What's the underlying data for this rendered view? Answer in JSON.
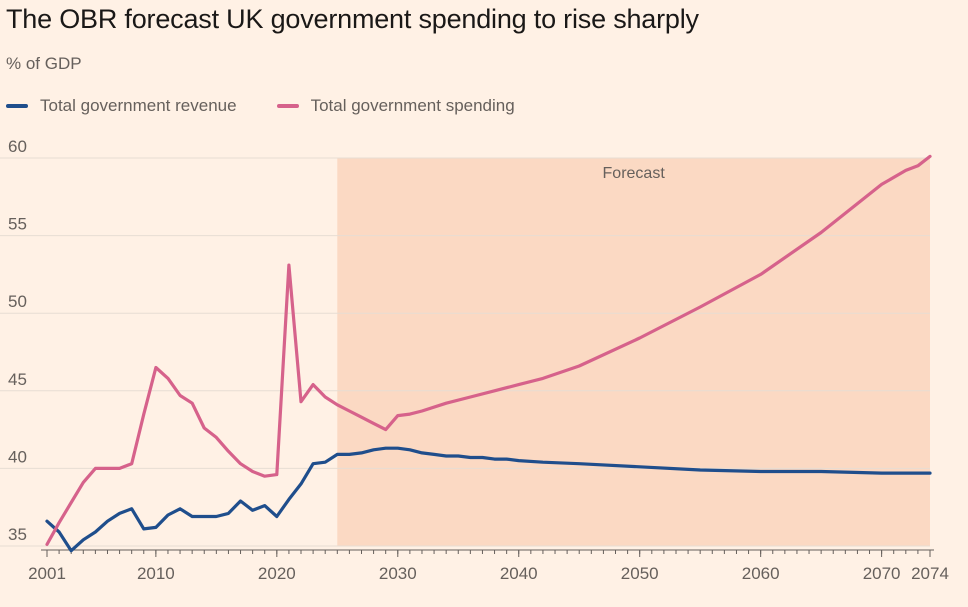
{
  "title": "The OBR forecast UK government spending to rise sharply",
  "subtitle": "% of GDP",
  "legend": {
    "revenue": "Total government revenue",
    "spending": "Total government spending"
  },
  "colors": {
    "background": "#fff1e5",
    "forecast_band": "#fbd9c3",
    "revenue": "#1f4e8c",
    "spending": "#d6628b",
    "grid": "#e7ddd3",
    "axis": "#66605c"
  },
  "chart_data": {
    "type": "line",
    "title": "The OBR forecast UK government spending to rise sharply",
    "ylabel": "% of GDP",
    "xlim": [
      2001,
      2074
    ],
    "ylim": [
      35,
      60
    ],
    "yticks": [
      35,
      40,
      45,
      50,
      55,
      60
    ],
    "xticks": [
      2001,
      2010,
      2020,
      2030,
      2040,
      2050,
      2060,
      2070,
      2074
    ],
    "grid": true,
    "legend_position": "top-left",
    "annotation": {
      "label": "Forecast",
      "x_start": 2025,
      "x_end": 2074
    },
    "series": [
      {
        "name": "Total government revenue",
        "x": [
          2001,
          2002,
          2003,
          2004,
          2005,
          2006,
          2007,
          2008,
          2009,
          2010,
          2011,
          2012,
          2013,
          2014,
          2015,
          2016,
          2017,
          2018,
          2019,
          2020,
          2021,
          2022,
          2023,
          2024,
          2025,
          2026,
          2027,
          2028,
          2029,
          2030,
          2031,
          2032,
          2033,
          2034,
          2035,
          2036,
          2037,
          2038,
          2039,
          2040,
          2042,
          2045,
          2050,
          2055,
          2060,
          2065,
          2070,
          2074
        ],
        "values": [
          36.6,
          35.9,
          34.7,
          35.4,
          35.9,
          36.6,
          37.1,
          37.4,
          36.1,
          36.2,
          37.0,
          37.4,
          36.9,
          36.9,
          36.9,
          37.1,
          37.9,
          37.3,
          37.6,
          36.9,
          38.0,
          39.0,
          40.3,
          40.4,
          40.9,
          40.9,
          41.0,
          41.2,
          41.3,
          41.3,
          41.2,
          41.0,
          40.9,
          40.8,
          40.8,
          40.7,
          40.7,
          40.6,
          40.6,
          40.5,
          40.4,
          40.3,
          40.1,
          39.9,
          39.8,
          39.8,
          39.7,
          39.7
        ]
      },
      {
        "name": "Total government spending",
        "x": [
          2001,
          2002,
          2003,
          2004,
          2005,
          2006,
          2007,
          2008,
          2009,
          2010,
          2011,
          2012,
          2013,
          2014,
          2015,
          2016,
          2017,
          2018,
          2019,
          2020,
          2021,
          2022,
          2023,
          2024,
          2025,
          2026,
          2027,
          2028,
          2029,
          2030,
          2031,
          2032,
          2034,
          2036,
          2038,
          2040,
          2042,
          2045,
          2050,
          2055,
          2060,
          2065,
          2070,
          2072,
          2073,
          2074
        ],
        "values": [
          35.1,
          36.5,
          37.8,
          39.1,
          40.0,
          40.0,
          40.0,
          40.3,
          43.5,
          46.5,
          45.8,
          44.7,
          44.2,
          42.6,
          42.0,
          41.1,
          40.3,
          39.8,
          39.5,
          39.6,
          53.1,
          44.3,
          45.4,
          44.6,
          44.1,
          43.7,
          43.3,
          42.9,
          42.5,
          43.4,
          43.5,
          43.7,
          44.2,
          44.6,
          45.0,
          45.4,
          45.8,
          46.6,
          48.4,
          50.4,
          52.5,
          55.2,
          58.3,
          59.2,
          59.5,
          60.1
        ]
      }
    ]
  }
}
